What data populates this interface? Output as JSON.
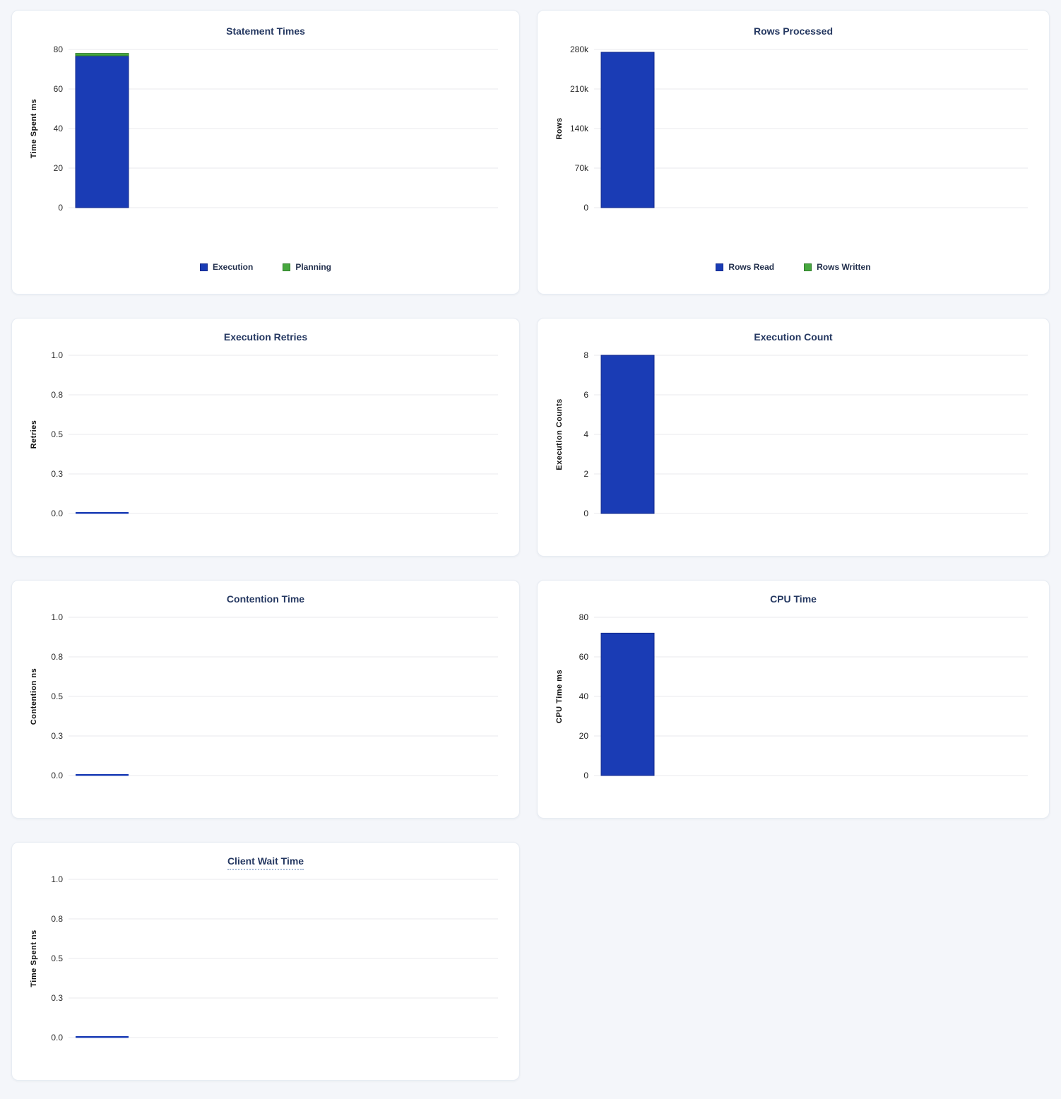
{
  "colors": {
    "blue": "#1A3CB5",
    "blue_stroke": "#12288C",
    "green": "#47A83F",
    "green_stroke": "#2F7D2B",
    "grid": "#E9EAEE",
    "tick_label": "#2B2B2B",
    "axis_label": "#111111",
    "title": "#253861",
    "legend_text": "#23304D",
    "page_bg": "#F4F6FA",
    "card_bg": "#FFFFFF"
  },
  "chart_data": [
    {
      "type": "bar",
      "title": "Statement Times",
      "ylabel": "Time Spent ms",
      "ymax": 80,
      "ylim": [
        0,
        80
      ],
      "grid": true,
      "legend_position": "bottom",
      "yticks": [
        {
          "value": 0,
          "label": "0"
        },
        {
          "value": 20,
          "label": "20"
        },
        {
          "value": 40,
          "label": "40"
        },
        {
          "value": 60,
          "label": "60"
        },
        {
          "value": 80,
          "label": "80"
        }
      ],
      "series": [
        {
          "name": "Execution",
          "value": 76.8,
          "color": "blue"
        },
        {
          "name": "Planning",
          "value": 1.2,
          "color": "green"
        }
      ],
      "legend": [
        {
          "label": "Execution",
          "color": "blue"
        },
        {
          "label": "Planning",
          "color": "green"
        }
      ]
    },
    {
      "type": "bar",
      "title": "Rows Processed",
      "ylabel": "Rows",
      "ymax": 280000,
      "ylim": [
        0,
        280000
      ],
      "grid": true,
      "legend_position": "bottom",
      "yticks": [
        {
          "value": 0,
          "label": "0"
        },
        {
          "value": 70000,
          "label": "70k"
        },
        {
          "value": 140000,
          "label": "140k"
        },
        {
          "value": 210000,
          "label": "210k"
        },
        {
          "value": 280000,
          "label": "280k"
        }
      ],
      "series": [
        {
          "name": "Rows Read",
          "value": 275000,
          "color": "blue"
        },
        {
          "name": "Rows Written",
          "value": 0,
          "color": "green"
        }
      ],
      "legend": [
        {
          "label": "Rows Read",
          "color": "blue"
        },
        {
          "label": "Rows Written",
          "color": "green"
        }
      ]
    },
    {
      "type": "bar",
      "title": "Execution Retries",
      "ylabel": "Retries",
      "ymax": 1,
      "ylim": [
        0,
        1
      ],
      "grid": true,
      "yticks": [
        {
          "value": 0,
          "label": "0.0"
        },
        {
          "value": 0.25,
          "label": "0.3"
        },
        {
          "value": 0.5,
          "label": "0.5"
        },
        {
          "value": 0.75,
          "label": "0.8"
        },
        {
          "value": 1,
          "label": "1.0"
        }
      ],
      "series": [
        {
          "value": 0,
          "color": "blue"
        }
      ],
      "legend": null
    },
    {
      "type": "bar",
      "title": "Execution Count",
      "ylabel": "Execution Counts",
      "ymax": 8,
      "ylim": [
        0,
        8
      ],
      "grid": true,
      "yticks": [
        {
          "value": 0,
          "label": "0"
        },
        {
          "value": 2,
          "label": "2"
        },
        {
          "value": 4,
          "label": "4"
        },
        {
          "value": 6,
          "label": "6"
        },
        {
          "value": 8,
          "label": "8"
        }
      ],
      "series": [
        {
          "value": 8,
          "color": "blue"
        }
      ],
      "legend": null
    },
    {
      "type": "bar",
      "title": "Contention Time",
      "ylabel": "Contention ns",
      "ymax": 1,
      "ylim": [
        0,
        1
      ],
      "grid": true,
      "yticks": [
        {
          "value": 0,
          "label": "0.0"
        },
        {
          "value": 0.25,
          "label": "0.3"
        },
        {
          "value": 0.5,
          "label": "0.5"
        },
        {
          "value": 0.75,
          "label": "0.8"
        },
        {
          "value": 1,
          "label": "1.0"
        }
      ],
      "series": [
        {
          "value": 0,
          "color": "blue"
        }
      ],
      "legend": null
    },
    {
      "type": "bar",
      "title": "CPU Time",
      "ylabel": "CPU Time ms",
      "ymax": 80,
      "ylim": [
        0,
        80
      ],
      "grid": true,
      "yticks": [
        {
          "value": 0,
          "label": "0"
        },
        {
          "value": 20,
          "label": "20"
        },
        {
          "value": 40,
          "label": "40"
        },
        {
          "value": 60,
          "label": "60"
        },
        {
          "value": 80,
          "label": "80"
        }
      ],
      "series": [
        {
          "value": 72,
          "color": "blue"
        }
      ],
      "legend": null
    },
    {
      "type": "bar",
      "title": "Client Wait Time",
      "title_underline": true,
      "ylabel": "Time Spent ns",
      "ymax": 1,
      "ylim": [
        0,
        1
      ],
      "grid": true,
      "yticks": [
        {
          "value": 0,
          "label": "0.0"
        },
        {
          "value": 0.25,
          "label": "0.3"
        },
        {
          "value": 0.5,
          "label": "0.5"
        },
        {
          "value": 0.75,
          "label": "0.8"
        },
        {
          "value": 1,
          "label": "1.0"
        }
      ],
      "series": [
        {
          "value": 0,
          "color": "blue"
        }
      ],
      "legend": null
    }
  ]
}
